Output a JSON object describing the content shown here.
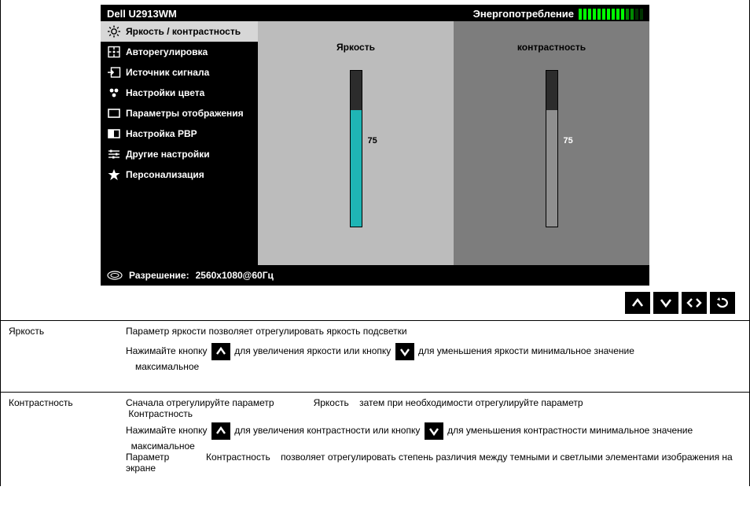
{
  "osd": {
    "title": "Dell U2913WM",
    "energy_label": "Энергопотребление",
    "energy_bars": {
      "on": 10,
      "dim": 2,
      "off": 2
    },
    "menu": [
      {
        "key": "brightness",
        "label": "Яркость / контрастность",
        "icon": "sun"
      },
      {
        "key": "auto",
        "label": "Авторегулировка",
        "icon": "target"
      },
      {
        "key": "input",
        "label": "Источник сигнала",
        "icon": "input"
      },
      {
        "key": "color",
        "label": "Настройки цвета",
        "icon": "dots"
      },
      {
        "key": "display",
        "label": "Параметры отображения",
        "icon": "rect-empty"
      },
      {
        "key": "pbp",
        "label": "Настройка PBP",
        "icon": "rect-fill"
      },
      {
        "key": "other",
        "label": "Другие настройки",
        "icon": "sliders"
      },
      {
        "key": "personal",
        "label": "Персонализация",
        "icon": "star"
      }
    ],
    "selected_menu": "brightness",
    "panels": {
      "brightness": {
        "label": "Яркость",
        "value": 75,
        "fill_color": "#1fb5b5",
        "top_color": "#2c2c2c",
        "bg": "#bcbcbc"
      },
      "contrast": {
        "label": "контрастность",
        "value": 75,
        "fill_color": "#8f8f8f",
        "top_color": "#2c2c2c",
        "bg": "#7d7d7d"
      }
    },
    "resolution_key": "Разрешение:",
    "resolution_val": "2560x1080@60Гц"
  },
  "controls": [
    "up",
    "down",
    "leftright",
    "back"
  ],
  "rows": [
    {
      "label": "Яркость",
      "line1": "Параметр яркости позволяет отрегулировать яркость подсветки",
      "line2a": "Нажимайте кнопку",
      "line2b": "для увеличения яркости или кнопку",
      "line2c": "для уменьшения яркости   минимальное значение",
      "line2d": "максимальное"
    },
    {
      "label": "Контрастность",
      "line1a": "Сначала отрегулируйте параметр",
      "line1b": "Яркость",
      "line1c": "затем при необходимости отрегулируйте параметр",
      "line1d": "Контрастность",
      "line2a": "Нажимайте кнопку",
      "line2b": "для увеличения контрастности или кнопку",
      "line2c": "для уменьшения контрастности   минимальное значение",
      "line2d": "максимальное",
      "line3a": "Параметр",
      "line3b": "Контрастность",
      "line3c": "позволяет отрегулировать степень различия между темными и светлыми элементами изображения на экране"
    }
  ]
}
